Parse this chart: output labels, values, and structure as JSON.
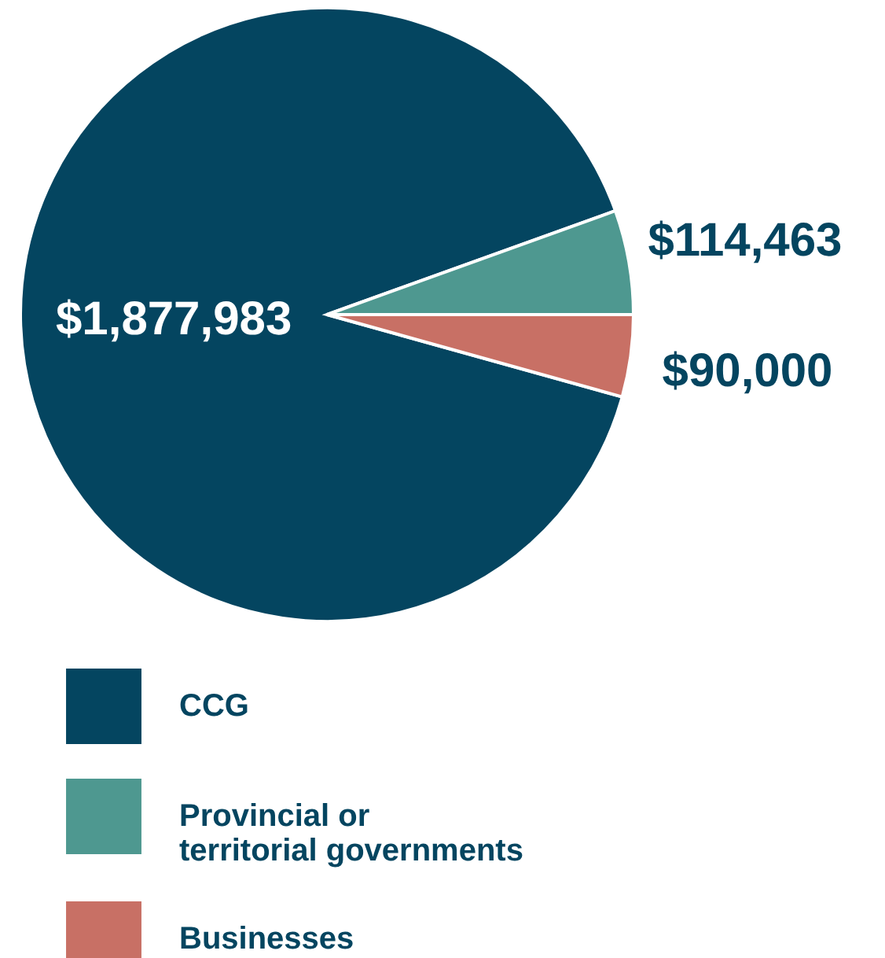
{
  "chart_data": {
    "type": "pie",
    "categories": [
      "CCG",
      "Provincial or territorial governments",
      "Businesses"
    ],
    "values": [
      1877983,
      114463,
      90000
    ],
    "colors": [
      "#044560",
      "#4e9890",
      "#c87065"
    ],
    "value_labels": [
      "$1,877,983",
      "$114,463",
      "$90,000"
    ],
    "legend": "bottom"
  }
}
